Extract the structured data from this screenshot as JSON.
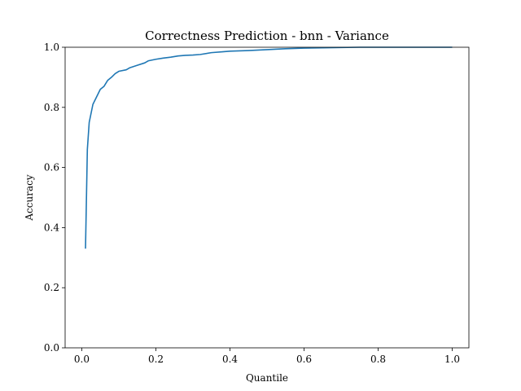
{
  "chart_data": {
    "type": "line",
    "title": "Correctness Prediction - bnn - Variance",
    "xlabel": "Quantile",
    "ylabel": "Accuracy",
    "xlim": [
      -0.045,
      1.045
    ],
    "ylim": [
      0.0,
      1.0
    ],
    "xticks": [
      0.0,
      0.2,
      0.4,
      0.6,
      0.8,
      1.0
    ],
    "xtick_labels": [
      "0.0",
      "0.2",
      "0.4",
      "0.6",
      "0.8",
      "1.0"
    ],
    "yticks": [
      0.0,
      0.2,
      0.4,
      0.6,
      0.8,
      1.0
    ],
    "ytick_labels": [
      "0.0",
      "0.2",
      "0.4",
      "0.6",
      "0.8",
      "1.0"
    ],
    "grid": false,
    "legend": "none",
    "series": [
      {
        "color": "#1f77b4",
        "x": [
          0.01,
          0.015,
          0.02,
          0.03,
          0.04,
          0.05,
          0.06,
          0.07,
          0.08,
          0.09,
          0.1,
          0.12,
          0.13,
          0.15,
          0.17,
          0.18,
          0.2,
          0.22,
          0.24,
          0.26,
          0.28,
          0.3,
          0.32,
          0.35,
          0.38,
          0.4,
          0.45,
          0.5,
          0.55,
          0.6,
          0.65,
          0.7,
          0.75,
          0.8,
          0.85,
          0.9,
          0.95,
          1.0
        ],
        "y": [
          0.33,
          0.66,
          0.75,
          0.81,
          0.835,
          0.86,
          0.87,
          0.89,
          0.9,
          0.912,
          0.92,
          0.925,
          0.932,
          0.94,
          0.948,
          0.955,
          0.96,
          0.964,
          0.967,
          0.971,
          0.973,
          0.974,
          0.976,
          0.982,
          0.985,
          0.987,
          0.989,
          0.992,
          0.995,
          0.997,
          0.998,
          0.999,
          1.0,
          1.0,
          1.0,
          1.0,
          1.0,
          1.0
        ]
      }
    ]
  }
}
